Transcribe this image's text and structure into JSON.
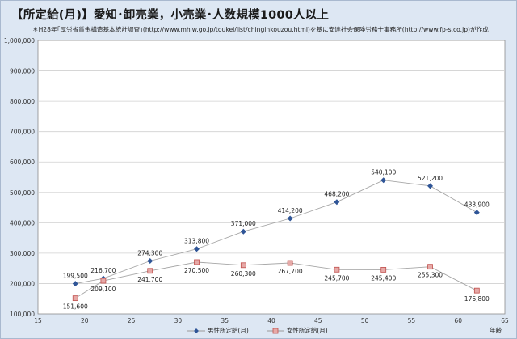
{
  "title": "【所定給(月)】愛知･卸売業，小売業･人数規模1000人以上",
  "note": "＊H28年｢厚労省賃金構造基本統計調査｣(http://www.mhlw.go.jp/toukei/list/chinginkouzou.html)を基に安達社会保険労務士事務所(http://www.fp-s.co.jp)が作成",
  "chart_data": {
    "type": "line",
    "xlabel": "年齢",
    "ylabel": "",
    "xlim": [
      15,
      65
    ],
    "ylim": [
      100000,
      1000000
    ],
    "xticks": [
      15,
      20,
      25,
      30,
      35,
      40,
      45,
      50,
      55,
      60,
      65
    ],
    "yticks": [
      100000,
      200000,
      300000,
      400000,
      500000,
      600000,
      700000,
      800000,
      900000,
      1000000
    ],
    "ytick_labels": [
      "100,000",
      "200,000",
      "300,000",
      "400,000",
      "500,000",
      "600,000",
      "700,000",
      "800,000",
      "900,000",
      "1,000,000"
    ],
    "grid": true,
    "legend_position": "bottom",
    "series": [
      {
        "name": "男性所定給(月)",
        "color": "#2f5597",
        "marker": "diamond",
        "x": [
          19,
          22,
          27,
          32,
          37,
          42,
          47,
          52,
          57,
          62
        ],
        "y": [
          199500,
          216700,
          274300,
          313800,
          371000,
          414200,
          468200,
          540100,
          521200,
          433900
        ],
        "labels": [
          "199,500",
          "216,700",
          "274,300",
          "313,800",
          "371,000",
          "414,200",
          "468,200",
          "540,100",
          "521,200",
          "433,900"
        ]
      },
      {
        "name": "女性所定給(月)",
        "color": "#c0504d",
        "marker": "square",
        "x": [
          19,
          22,
          27,
          32,
          37,
          42,
          47,
          52,
          57,
          62
        ],
        "y": [
          151600,
          209100,
          241700,
          270500,
          260300,
          267700,
          245700,
          245400,
          255300,
          176800
        ],
        "labels": [
          "151,600",
          "209,100",
          "241,700",
          "270,500",
          "260,300",
          "267,700",
          "245,700",
          "245,400",
          "255,300",
          "176,800"
        ]
      }
    ]
  }
}
